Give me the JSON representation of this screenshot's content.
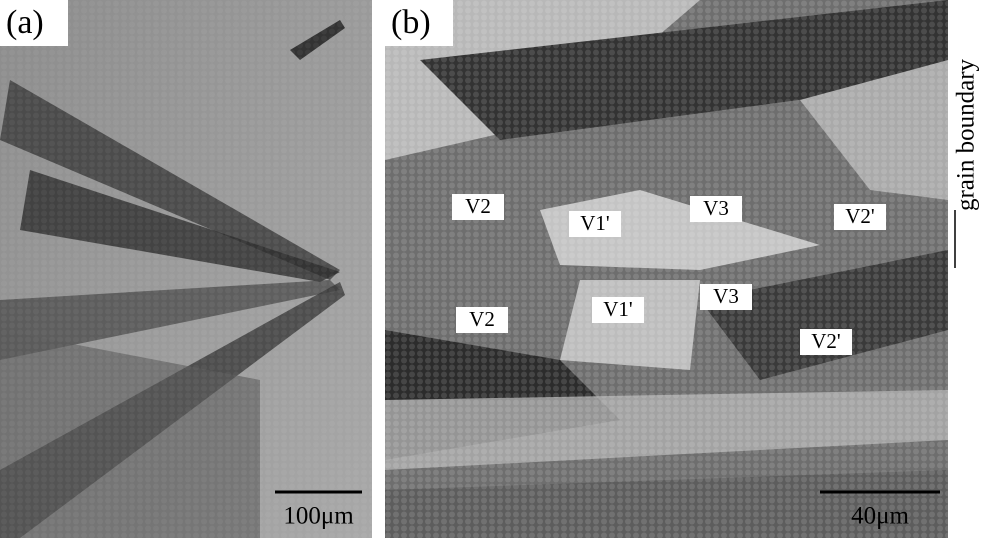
{
  "panels": [
    {
      "label": "(a)",
      "scale_bar": "100μm"
    },
    {
      "label": "(b)",
      "scale_bar": "40μm",
      "annotations": [
        "V2",
        "V1'",
        "V3",
        "V2'",
        "V2",
        "V1'",
        "V3",
        "V2'"
      ],
      "side_label": "grain boundary"
    }
  ]
}
